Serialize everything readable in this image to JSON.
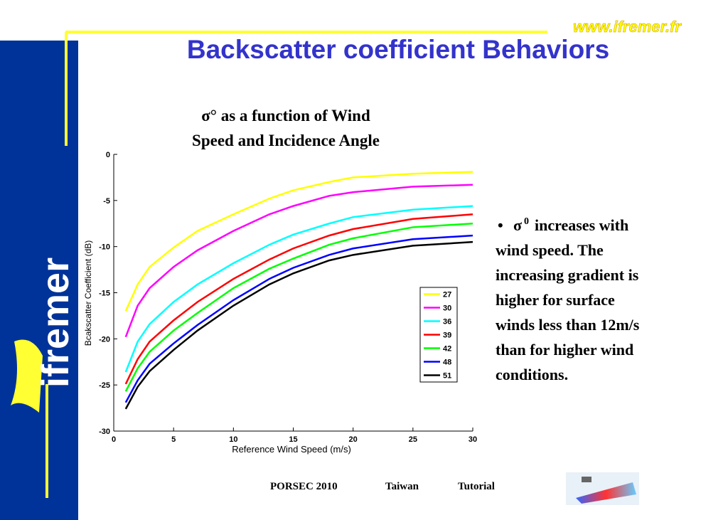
{
  "header": {
    "url": "www.ifremer.fr",
    "title": "Backscatter coefficient Behaviors",
    "logo": "ifremer"
  },
  "chart_data": {
    "type": "line",
    "title": [
      "σ° as a function of Wind",
      "Speed and Incidence Angle"
    ],
    "xlabel": "Reference Wind Speed (m/s)",
    "ylabel": "Bcakscatter Coefficient (dB)",
    "x": [
      1,
      2,
      3,
      5,
      7,
      10,
      13,
      15,
      18,
      20,
      25,
      30
    ],
    "xlim": [
      0,
      30
    ],
    "xticks": [
      0,
      5,
      10,
      15,
      20,
      25,
      30
    ],
    "ylim": [
      -30,
      0
    ],
    "yticks": [
      0,
      -5,
      -10,
      -15,
      -20,
      -25,
      -30
    ],
    "legend": "lower right",
    "series": [
      {
        "name": "27",
        "color": "#ffff00",
        "values": [
          -17.0,
          -14.1,
          -12.2,
          -10.1,
          -8.3,
          -6.5,
          -4.8,
          -3.9,
          -3.0,
          -2.5,
          -2.1,
          -1.9
        ]
      },
      {
        "name": "30",
        "color": "#ff00ff",
        "values": [
          -19.8,
          -16.4,
          -14.5,
          -12.2,
          -10.4,
          -8.3,
          -6.5,
          -5.6,
          -4.5,
          -4.1,
          -3.5,
          -3.3
        ]
      },
      {
        "name": "36",
        "color": "#00ffff",
        "values": [
          -23.6,
          -20.3,
          -18.4,
          -16.0,
          -14.1,
          -11.8,
          -9.8,
          -8.7,
          -7.5,
          -6.8,
          -6.0,
          -5.6
        ]
      },
      {
        "name": "39",
        "color": "#ff0000",
        "values": [
          -24.9,
          -22.2,
          -20.3,
          -18.0,
          -16.0,
          -13.5,
          -11.4,
          -10.2,
          -8.8,
          -8.1,
          -7.0,
          -6.5
        ]
      },
      {
        "name": "42",
        "color": "#00ff00",
        "values": [
          -25.7,
          -23.2,
          -21.4,
          -19.1,
          -17.2,
          -14.5,
          -12.4,
          -11.3,
          -9.8,
          -9.1,
          -7.9,
          -7.5
        ]
      },
      {
        "name": "48",
        "color": "#0000ff",
        "values": [
          -26.9,
          -24.5,
          -22.7,
          -20.5,
          -18.5,
          -15.8,
          -13.5,
          -12.3,
          -10.9,
          -10.2,
          -9.2,
          -8.8
        ]
      },
      {
        "name": "51",
        "color": "#000000",
        "values": [
          -27.6,
          -25.2,
          -23.5,
          -21.2,
          -19.1,
          -16.4,
          -14.1,
          -12.9,
          -11.5,
          -10.9,
          -9.9,
          -9.5
        ]
      }
    ]
  },
  "bullet": {
    "symbol": "σ",
    "superscript": "0",
    "lines": [
      "increases with",
      "wind speed. The",
      "increasing gradient is",
      "higher for surface",
      "winds less than 12m/s",
      "than for higher wind",
      "conditions."
    ]
  },
  "footer": [
    "PORSEC 2010",
    "Taiwan",
    "Tutorial"
  ]
}
